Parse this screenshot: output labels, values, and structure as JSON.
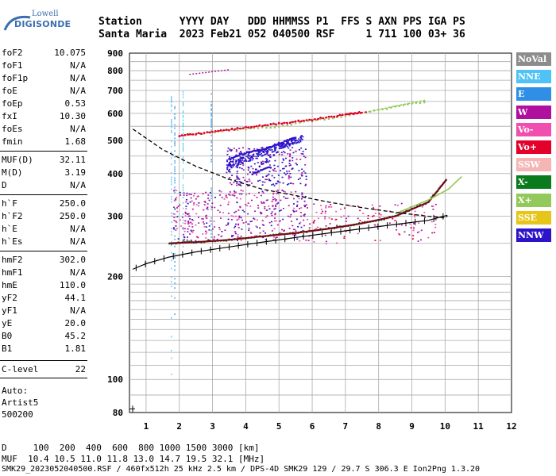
{
  "logo": {
    "line1": "Lowell",
    "line2": "DIGISONDE"
  },
  "header": {
    "line1": "Station      YYYY DAY   DDD HHMMSS P1  FFS S AXN PPS IGA PS",
    "line2": "Santa Maria  2023 Feb21 052 040500 RSF     1 711 100 03+ 36"
  },
  "parameters": [
    {
      "label": "foF2",
      "value": "10.075"
    },
    {
      "label": "foF1",
      "value": "N/A"
    },
    {
      "label": "foF1p",
      "value": "N/A"
    },
    {
      "label": "foE",
      "value": "N/A"
    },
    {
      "label": "foEp",
      "value": "0.53"
    },
    {
      "label": "fxI",
      "value": "10.30"
    },
    {
      "label": "foEs",
      "value": "N/A"
    },
    {
      "label": "fmin",
      "value": "1.68"
    },
    {
      "label": "MUF(D)",
      "value": "32.11"
    },
    {
      "label": "M(D)",
      "value": "3.19"
    },
    {
      "label": "D",
      "value": "N/A"
    },
    {
      "label": "h`F",
      "value": "250.0"
    },
    {
      "label": "h`F2",
      "value": "250.0"
    },
    {
      "label": "h`E",
      "value": "N/A"
    },
    {
      "label": "h`Es",
      "value": "N/A"
    },
    {
      "label": "hmF2",
      "value": "302.0"
    },
    {
      "label": "hmF1",
      "value": "N/A"
    },
    {
      "label": "hmE",
      "value": "110.0"
    },
    {
      "label": "yF2",
      "value": "44.1"
    },
    {
      "label": "yF1",
      "value": "N/A"
    },
    {
      "label": "yE",
      "value": "20.0"
    },
    {
      "label": "B0",
      "value": "45.2"
    },
    {
      "label": "B1",
      "value": "1.81"
    },
    {
      "label": "C-level",
      "value": "22"
    }
  ],
  "autoscale": {
    "line1": "Auto:",
    "line2": "Artist5",
    "line3": "500200"
  },
  "legend": [
    {
      "label": "NoVal",
      "bg": "#8c8c8c",
      "fg": "#ffffff"
    },
    {
      "label": "NNE",
      "bg": "#4fc3f7",
      "fg": "#ffffff"
    },
    {
      "label": "E",
      "bg": "#2f8fe6",
      "fg": "#ffffff"
    },
    {
      "label": "W",
      "bg": "#b0109e",
      "fg": "#ffffff"
    },
    {
      "label": "Vo-",
      "bg": "#f04fb0",
      "fg": "#ffffff"
    },
    {
      "label": "Vo+",
      "bg": "#e3002b",
      "fg": "#ffffff"
    },
    {
      "label": "SSW",
      "bg": "#f5b5b5",
      "fg": "#ffffff"
    },
    {
      "label": "X-",
      "bg": "#0a7a1c",
      "fg": "#ffffff"
    },
    {
      "label": "X+",
      "bg": "#93c85a",
      "fg": "#ffffff"
    },
    {
      "label": "SSE",
      "bg": "#e6c619",
      "fg": "#ffffff"
    },
    {
      "label": "NNW",
      "bg": "#2c14c8",
      "fg": "#ffffff"
    }
  ],
  "footer": {
    "line1": "D     100  200  400  600  800 1000 1500 3000 [km]",
    "line2": "MUF  10.4 10.5 11.0 11.8 13.0 14.7 19.5 32.1 [MHz]",
    "line3": "SMK29_2023052040500.RSF / 460fx512h 25 kHz 2.5 km / DPS-4D SMK29 129 / 29.7 S 306.3 E Ion2Png 1.3.20"
  },
  "chart_data": {
    "type": "scatter",
    "title": "",
    "xlabel": "",
    "ylabel": "",
    "xlim": [
      0.5,
      12
    ],
    "ylim": [
      80,
      900
    ],
    "y_scale": "log",
    "x_ticks": [
      "1",
      "2",
      "3",
      "4",
      "5",
      "6",
      "7",
      "8",
      "9",
      "10",
      "11",
      "12"
    ],
    "y_ticks": [
      "80",
      "100",
      "200",
      "300",
      "400",
      "500",
      "600",
      "700",
      "800",
      "900"
    ],
    "series": [
      {
        "name": "X-",
        "color": "#0a7a1c",
        "x": [
          1.7,
          2.5,
          3.5,
          4.5,
          5.5,
          6.5,
          7.5,
          8.5,
          9.5,
          10.05
        ],
        "y": [
          250,
          252,
          256,
          262,
          268,
          276,
          286,
          300,
          330,
          385
        ]
      },
      {
        "name": "X+",
        "color": "#93c85a",
        "x": [
          2.2,
          3.5,
          5.0,
          6.5,
          8.0,
          9.5,
          10.5
        ],
        "y": [
          520,
          535,
          550,
          580,
          615,
          650,
          390
        ]
      },
      {
        "name": "Vo+",
        "color": "#e3002b",
        "x": [
          2.0,
          3.0,
          4.0,
          5.0,
          6.0,
          7.0,
          7.5
        ],
        "y": [
          515,
          530,
          545,
          560,
          575,
          595,
          605
        ]
      },
      {
        "name": "NNW",
        "color": "#2c14c8",
        "x": [
          3.5,
          4.0,
          4.5,
          5.0,
          5.5,
          4.2,
          4.8
        ],
        "y": [
          440,
          460,
          470,
          490,
          510,
          400,
          420
        ]
      }
    ],
    "curves": [
      {
        "label": "virtual height (dashed)",
        "x": [
          0.6,
          1.5,
          2.5,
          3.5,
          4.5,
          5.5,
          6.5,
          7.5,
          8.5,
          9.5,
          10.0,
          10.07
        ],
        "y": [
          540,
          470,
          420,
          385,
          360,
          345,
          330,
          318,
          308,
          300,
          297,
          300
        ]
      },
      {
        "label": "true height profile (ticked)",
        "x": [
          0.6,
          1.0,
          1.7,
          2.5,
          3.5,
          4.5,
          5.5,
          6.5,
          7.5,
          8.5,
          9.5,
          10.07
        ],
        "y": [
          210,
          218,
          228,
          236,
          244,
          252,
          260,
          268,
          276,
          284,
          292,
          302
        ]
      }
    ]
  }
}
